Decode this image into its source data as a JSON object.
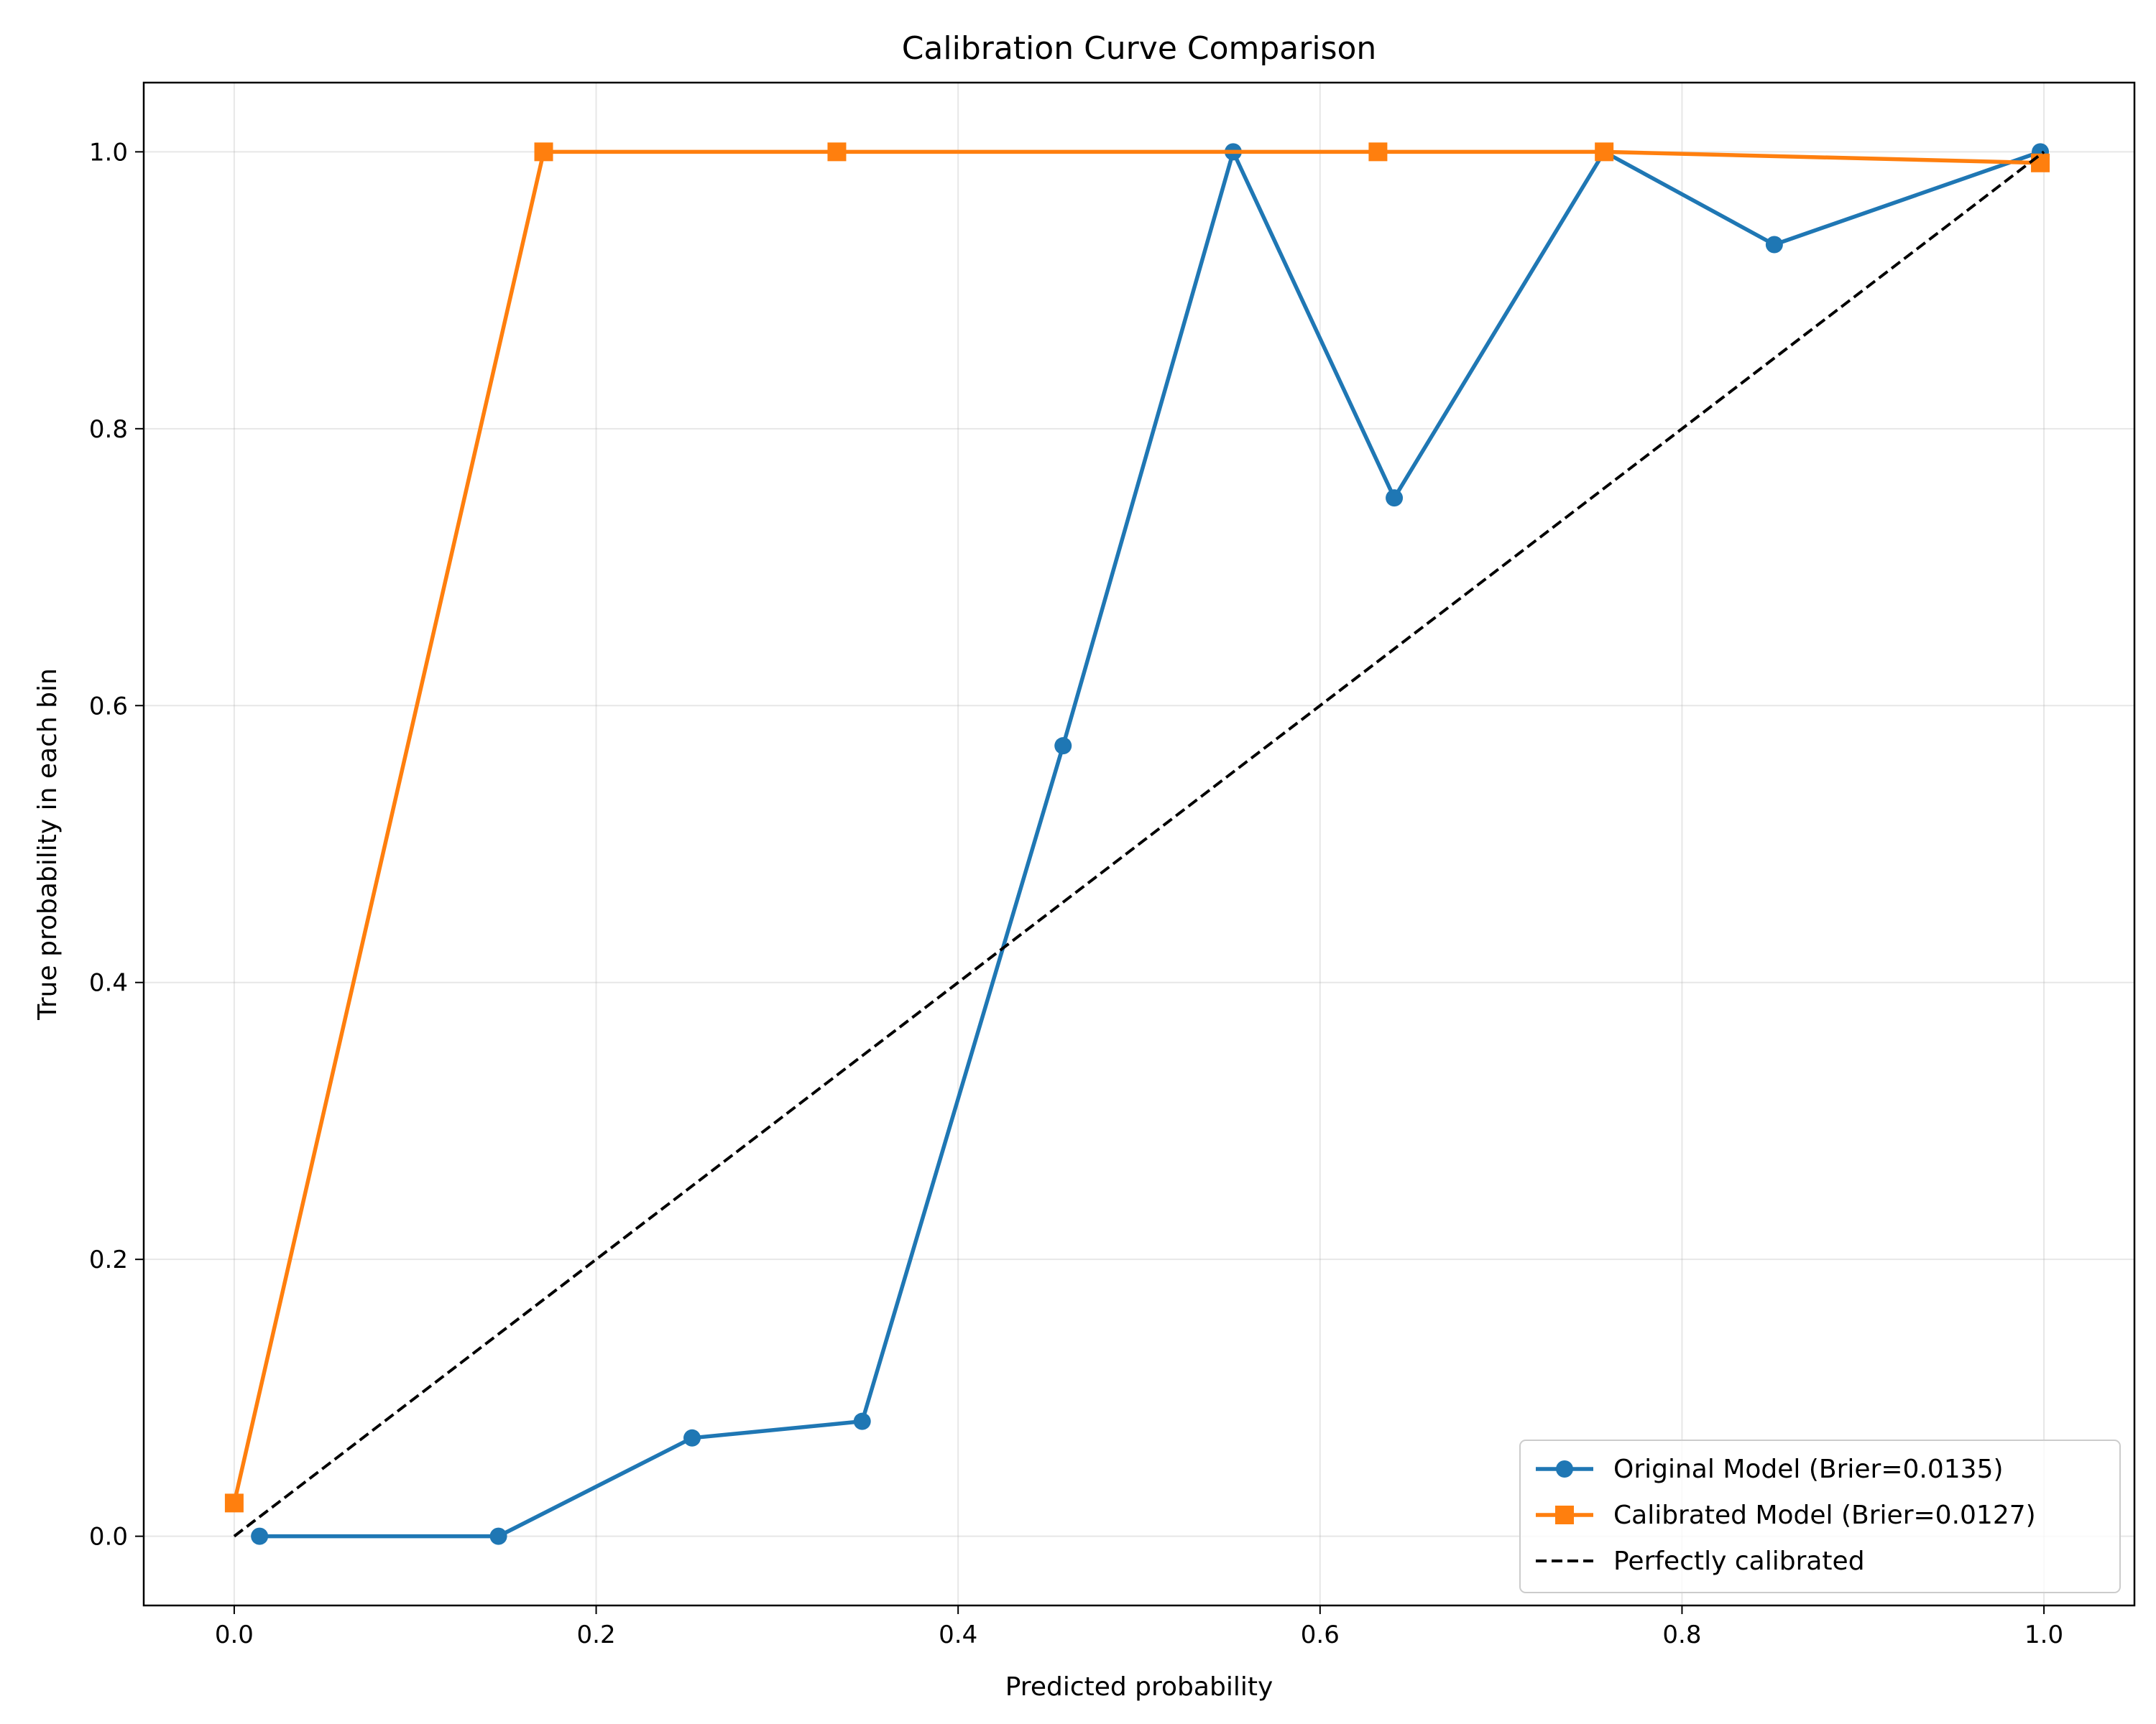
{
  "chart_data": {
    "type": "line",
    "title": "Calibration Curve Comparison",
    "xlabel": "Predicted probability",
    "ylabel": "True probability in each bin",
    "xlim": [
      -0.05,
      1.05
    ],
    "ylim": [
      -0.05,
      1.05
    ],
    "xticks": [
      0.0,
      0.2,
      0.4,
      0.6,
      0.8,
      1.0
    ],
    "yticks": [
      0.0,
      0.2,
      0.4,
      0.6,
      0.8,
      1.0
    ],
    "tick_labels": [
      "0.0",
      "0.2",
      "0.4",
      "0.6",
      "0.8",
      "1.0"
    ],
    "grid": true,
    "legend_position": "lower-right",
    "series": [
      {
        "name": "Original Model (Brier=0.0135)",
        "color": "#1f77b4",
        "marker": "circle",
        "linestyle": "solid",
        "x": [
          0.014,
          0.146,
          0.253,
          0.347,
          0.458,
          0.552,
          0.641,
          0.757,
          0.851,
          0.998
        ],
        "y": [
          0.0,
          0.0,
          0.071,
          0.083,
          0.571,
          1.0,
          0.75,
          1.0,
          0.933,
          1.0
        ]
      },
      {
        "name": "Calibrated Model (Brier=0.0127)",
        "color": "#ff7f0e",
        "marker": "square",
        "linestyle": "solid",
        "x": [
          0.0,
          0.171,
          0.333,
          0.632,
          0.757,
          0.998
        ],
        "y": [
          0.024,
          1.0,
          1.0,
          1.0,
          1.0,
          0.992
        ]
      },
      {
        "name": "Perfectly calibrated",
        "color": "#000000",
        "marker": "none",
        "linestyle": "dashed",
        "x": [
          0.0,
          1.0
        ],
        "y": [
          0.0,
          1.0
        ]
      }
    ]
  }
}
